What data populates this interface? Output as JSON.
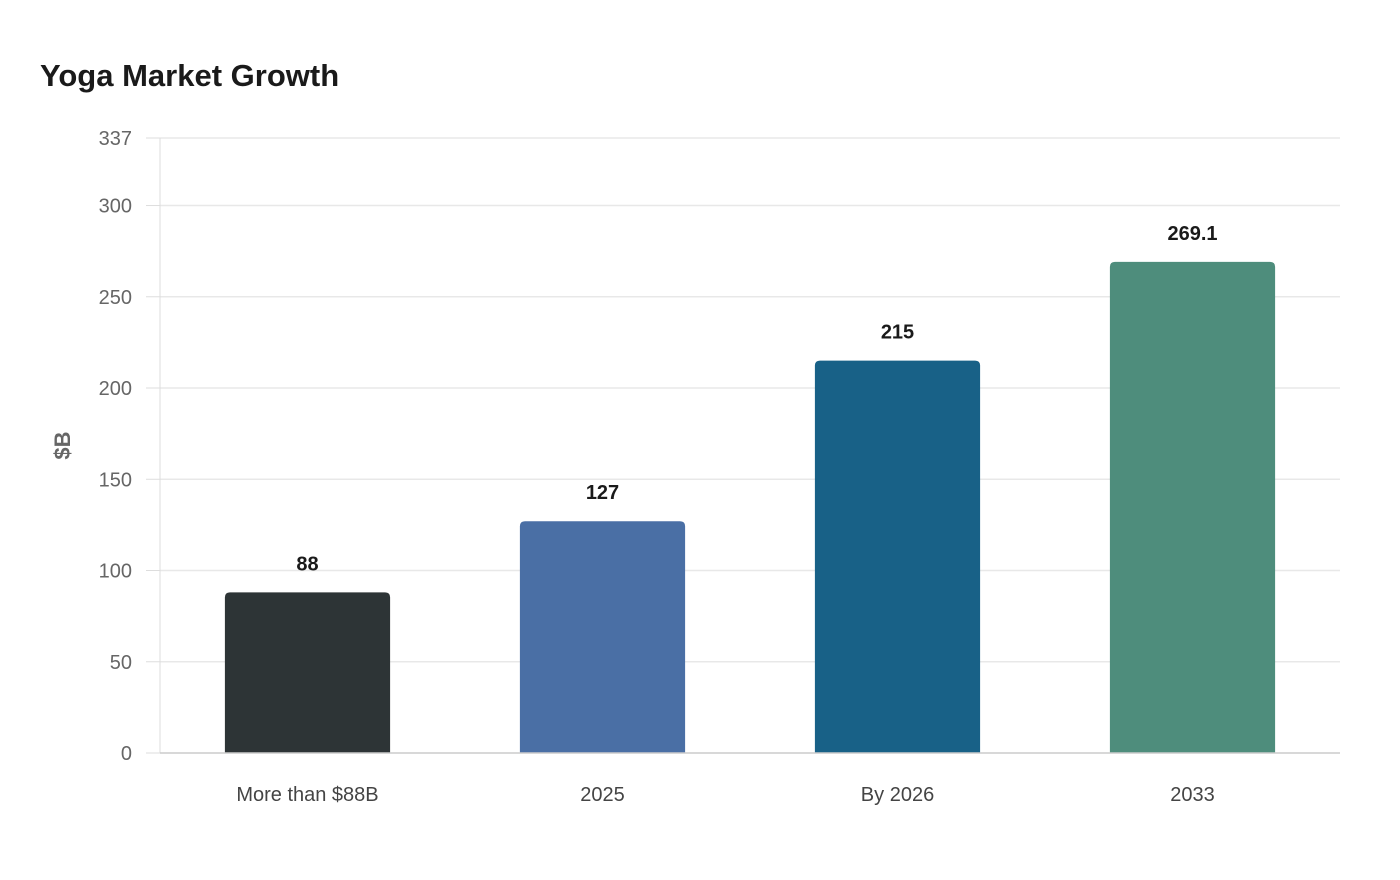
{
  "chart_data": {
    "type": "bar",
    "title": "Yoga Market Growth",
    "xlabel": "",
    "ylabel": "$B",
    "categories": [
      "More than $88B",
      "2025",
      "By 2026",
      "2033"
    ],
    "values": [
      88,
      127,
      215,
      269.1
    ],
    "value_labels": [
      "88",
      "127",
      "215",
      "269.1"
    ],
    "colors": [
      "#2d3436",
      "#4a6fa5",
      "#186187",
      "#4e8d7c"
    ],
    "ylim": [
      0,
      337
    ],
    "yticks": [
      0,
      50,
      100,
      150,
      200,
      250,
      300,
      337
    ],
    "grid": true,
    "legend": "none"
  }
}
